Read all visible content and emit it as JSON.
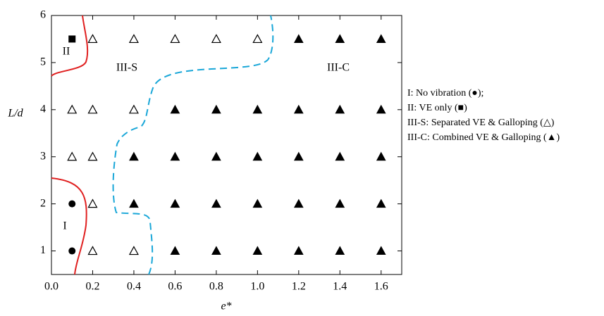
{
  "chart_data": {
    "type": "scatter",
    "xlabel": "e*",
    "ylabel": "L/d",
    "xlim": [
      0,
      1.7
    ],
    "ylim": [
      0.5,
      6
    ],
    "xticks": [
      {
        "value": 0,
        "label": "0.0"
      },
      0.2,
      0.4,
      0.6,
      0.8,
      {
        "value": 1,
        "label": "1.0"
      },
      1.2,
      1.4,
      1.6
    ],
    "yticks": [
      1,
      2,
      3,
      4,
      5,
      6
    ],
    "annotations": [
      "I",
      "II",
      "III-S",
      "III-C"
    ],
    "series": [
      {
        "name": "I: No vibration (●);",
        "color": "#000000",
        "marker": "circle",
        "x": [
          0.1,
          0.1
        ],
        "values": [
          1,
          2
        ]
      },
      {
        "name": "II: VE only (■)",
        "color": "#000000",
        "marker": "square",
        "x": [
          0.1
        ],
        "values": [
          5.5
        ]
      },
      {
        "name": "III-S: Separated VE & Galloping (△)",
        "color": "#000000",
        "marker": "triangle-open",
        "x": [
          0.2,
          0.4,
          0.6,
          0.8,
          1.0,
          0.1,
          0.2,
          0.4,
          0.1,
          0.2,
          0.2,
          0.2,
          0.4
        ],
        "values": [
          5.5,
          5.5,
          5.5,
          5.5,
          5.5,
          4,
          4,
          4,
          3,
          3,
          2,
          1,
          1
        ]
      },
      {
        "name": "III-C: Combined VE & Galloping (▲)",
        "color": "#000000",
        "marker": "triangle",
        "x": [
          1.2,
          1.4,
          1.6,
          0.6,
          0.8,
          1.0,
          1.2,
          1.4,
          1.6,
          0.4,
          0.6,
          0.8,
          1.0,
          1.2,
          1.4,
          1.6,
          0.4,
          0.6,
          0.8,
          1.0,
          1.2,
          1.4,
          1.6,
          0.6,
          0.8,
          1.0,
          1.2,
          1.4,
          1.6
        ],
        "values": [
          5.5,
          5.5,
          5.5,
          4,
          4,
          4,
          4,
          4,
          4,
          3,
          3,
          3,
          3,
          3,
          3,
          3,
          2,
          2,
          2,
          2,
          2,
          2,
          2,
          1,
          1,
          1,
          1,
          1,
          1
        ]
      }
    ]
  }
}
